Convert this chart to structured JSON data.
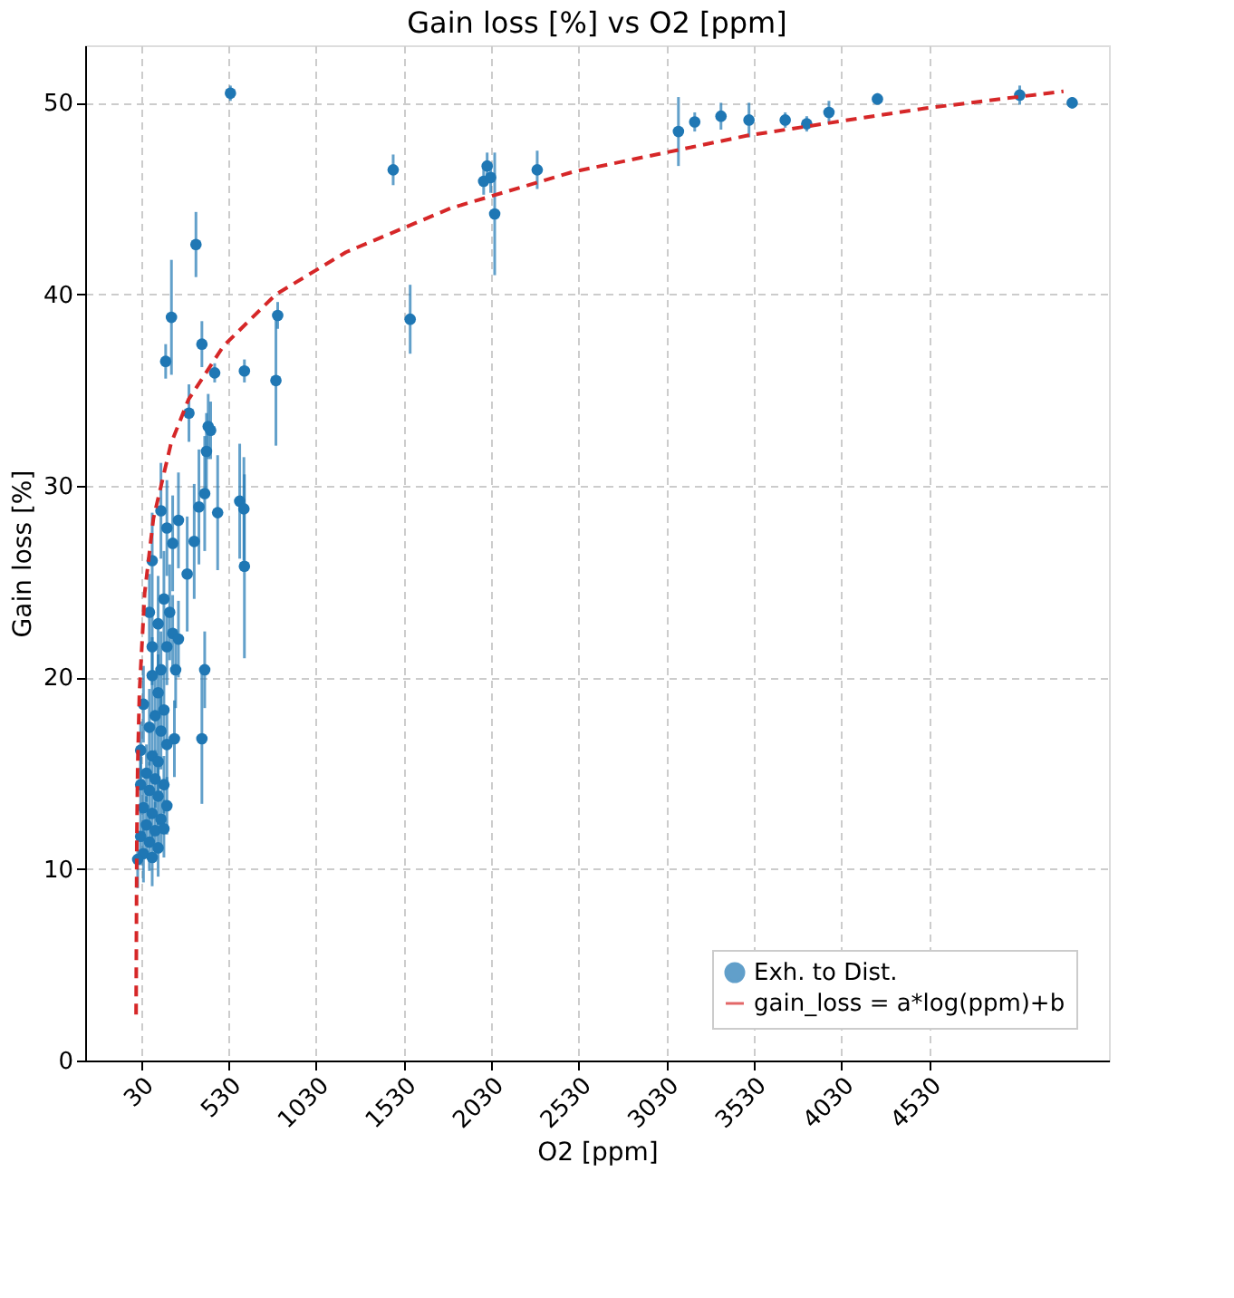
{
  "chart_data": {
    "type": "scatter",
    "title": "Gain loss [%] vs O2 [ppm]",
    "xlabel": "O2 [ppm]",
    "ylabel": "Gain loss [%]",
    "xlim": [
      -290,
      5560
    ],
    "ylim": [
      0,
      53
    ],
    "xticks": [
      30,
      530,
      1030,
      1530,
      2030,
      2530,
      3030,
      3530,
      4030,
      4530
    ],
    "yticks": [
      0,
      10,
      20,
      30,
      40,
      50
    ],
    "grid": true,
    "legend": "bottom right",
    "series": [
      {
        "name": "Exh. to Dist.",
        "marker": "circle",
        "color": "#1f77b4",
        "x": [
          1470,
          1567,
          2007,
          1987,
          2027,
          2050,
          2293,
          3100,
          3193,
          3343,
          3503,
          3710,
          3833,
          3960,
          4237,
          5050,
          5350,
          540,
          810,
          800,
          343,
          203,
          170,
          377,
          450,
          620,
          303,
          413,
          427,
          403,
          393,
          360,
          467,
          593,
          617,
          620,
          333,
          293,
          393,
          377,
          143,
          177,
          243,
          210,
          93,
          220,
          160,
          193,
          210,
          243,
          127,
          177,
          227,
          143,
          93,
          127,
          160,
          110,
          77,
          143,
          177,
          93,
          127,
          60,
          110,
          160,
          77,
          127,
          177,
          43,
          93,
          143,
          60,
          110,
          27,
          77,
          127,
          43,
          93,
          10,
          160,
          27,
          27,
          43,
          93,
          77
        ],
        "values": [
          46.5,
          38.7,
          46.7,
          45.9,
          46.1,
          44.2,
          46.5,
          48.5,
          49.0,
          49.3,
          49.1,
          49.1,
          48.9,
          49.5,
          50.2,
          50.4,
          50.0,
          50.5,
          38.9,
          35.5,
          42.6,
          38.8,
          36.5,
          37.4,
          35.9,
          36.0,
          33.8,
          33.1,
          32.9,
          31.8,
          29.6,
          28.9,
          28.6,
          29.2,
          28.8,
          25.8,
          27.1,
          25.4,
          20.4,
          16.8,
          28.7,
          27.8,
          28.2,
          27.0,
          26.1,
          16.8,
          24.1,
          23.4,
          22.3,
          22.0,
          22.8,
          21.6,
          20.4,
          20.4,
          20.1,
          19.2,
          18.3,
          18.0,
          17.4,
          17.2,
          16.5,
          15.9,
          15.6,
          15.0,
          14.7,
          14.4,
          14.1,
          13.8,
          13.3,
          13.2,
          12.9,
          12.6,
          12.3,
          12.0,
          11.7,
          11.4,
          11.1,
          10.8,
          10.6,
          10.5,
          12.1,
          14.4,
          16.2,
          18.6,
          21.6,
          23.4
        ],
        "errors": [
          0.8,
          1.8,
          0.7,
          0.7,
          0.8,
          3.2,
          1.0,
          1.8,
          0.5,
          0.7,
          0.9,
          0.4,
          0.4,
          0.6,
          0.3,
          0.5,
          0.3,
          0.4,
          0.7,
          3.4,
          1.7,
          3.0,
          0.9,
          1.2,
          0.5,
          0.6,
          1.5,
          1.7,
          1.5,
          2.0,
          3.0,
          3.0,
          3.0,
          3.0,
          2.7,
          4.8,
          3.0,
          3.0,
          2.0,
          3.4,
          2.5,
          2.5,
          2.5,
          2.5,
          2.5,
          2.0,
          2.5,
          2.5,
          2.0,
          2.0,
          2.5,
          2.0,
          2.0,
          2.0,
          2.0,
          2.0,
          2.0,
          2.0,
          2.0,
          2.0,
          2.0,
          1.5,
          1.5,
          1.5,
          1.5,
          1.5,
          1.5,
          1.5,
          1.5,
          1.5,
          1.5,
          1.5,
          1.5,
          1.5,
          1.5,
          1.5,
          1.5,
          1.5,
          1.5,
          1.5,
          1.5,
          1.5,
          1.5,
          2.0,
          2.0,
          2.0
        ]
      },
      {
        "name": "gain_loss = a*log(ppm)+b",
        "type": "line",
        "color": "#d62728",
        "line_style": "dashed",
        "x": [
          1,
          5,
          10,
          20,
          50,
          100,
          200,
          300,
          500,
          800,
          1200,
          1800,
          2500,
          3500,
          4500,
          5300
        ],
        "values": [
          2.4,
          11.4,
          15.3,
          19.2,
          24.4,
          28.3,
          32.2,
          34.5,
          37.3,
          40.0,
          42.2,
          44.5,
          46.4,
          48.3,
          49.7,
          50.6
        ]
      }
    ]
  }
}
